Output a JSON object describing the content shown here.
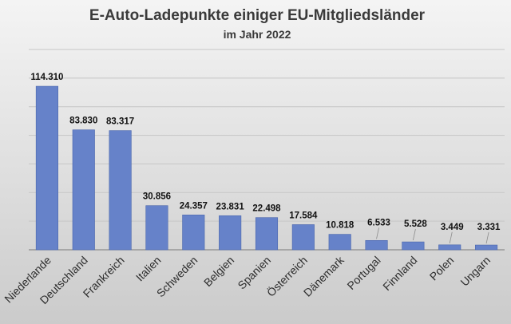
{
  "chart_data": {
    "type": "bar",
    "title": "E-Auto-Ladepunkte einiger EU-Mitgliedsländer",
    "subtitle": "im Jahr 2022",
    "xlabel": "",
    "ylabel": "",
    "ylim": [
      0,
      140000
    ],
    "y_grid_step": 20000,
    "grid": true,
    "legend": "none",
    "colors": {
      "bar": "#6682c9",
      "bar_edge": "#4a66ad"
    },
    "categories": [
      "Niederlande",
      "Deutschland",
      "Frankreich",
      "Italien",
      "Schweden",
      "Belgien",
      "Spanien",
      "Österreich",
      "Dänemark",
      "Portugal",
      "Finnland",
      "Polen",
      "Ungarn"
    ],
    "values": [
      114310,
      83830,
      83317,
      30856,
      24357,
      23831,
      22498,
      17584,
      10818,
      6533,
      5528,
      3449,
      3331
    ],
    "data_labels": [
      "114.310",
      "83.830",
      "83.317",
      "30.856",
      "24.357",
      "23.831",
      "22.498",
      "17.584",
      "10.818",
      "6.533",
      "5.528",
      "3.449",
      "3.331"
    ]
  }
}
